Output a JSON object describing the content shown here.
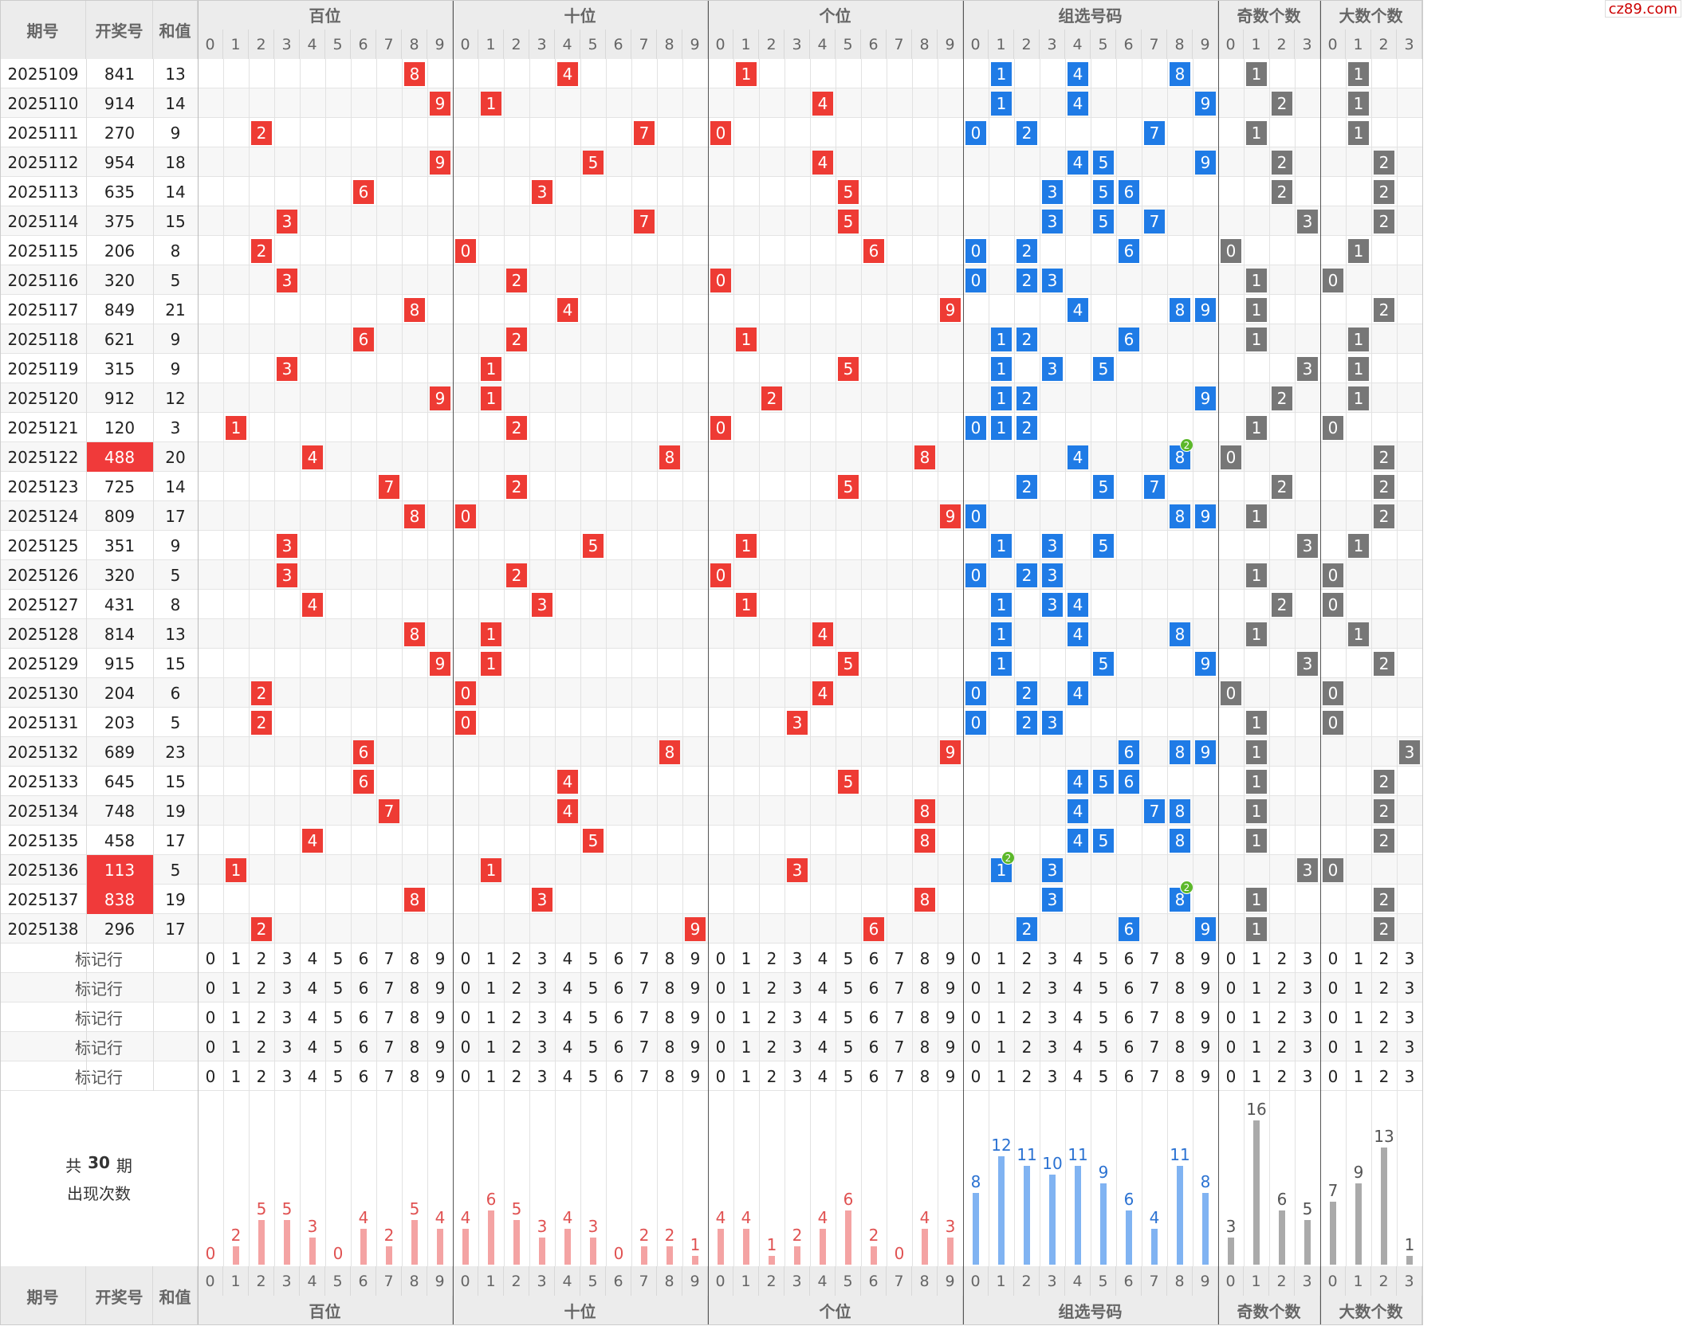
{
  "header": {
    "columns": [
      "期号",
      "开奖号",
      "和值"
    ],
    "groups": [
      "百位",
      "十位",
      "个位",
      "组选号码",
      "奇数个数",
      "大数个数"
    ],
    "digits": [
      0,
      1,
      2,
      3,
      4,
      5,
      6,
      7,
      8,
      9
    ],
    "small_digits": [
      0,
      1,
      2,
      3
    ]
  },
  "rows": [
    {
      "period": 2025109,
      "number": "841",
      "sum": 13
    },
    {
      "period": 2025110,
      "number": "914",
      "sum": 14
    },
    {
      "period": 2025111,
      "number": "270",
      "sum": 9
    },
    {
      "period": 2025112,
      "number": "954",
      "sum": 18
    },
    {
      "period": 2025113,
      "number": "635",
      "sum": 14
    },
    {
      "period": 2025114,
      "number": "375",
      "sum": 15
    },
    {
      "period": 2025115,
      "number": "206",
      "sum": 8
    },
    {
      "period": 2025116,
      "number": "320",
      "sum": 5
    },
    {
      "period": 2025117,
      "number": "849",
      "sum": 21
    },
    {
      "period": 2025118,
      "number": "621",
      "sum": 9
    },
    {
      "period": 2025119,
      "number": "315",
      "sum": 9
    },
    {
      "period": 2025120,
      "number": "912",
      "sum": 12
    },
    {
      "period": 2025121,
      "number": "120",
      "sum": 3
    },
    {
      "period": 2025122,
      "number": "488",
      "sum": 20,
      "repeat": 2
    },
    {
      "period": 2025123,
      "number": "725",
      "sum": 14
    },
    {
      "period": 2025124,
      "number": "809",
      "sum": 17
    },
    {
      "period": 2025125,
      "number": "351",
      "sum": 9
    },
    {
      "period": 2025126,
      "number": "320",
      "sum": 5
    },
    {
      "period": 2025127,
      "number": "431",
      "sum": 8
    },
    {
      "period": 2025128,
      "number": "814",
      "sum": 13
    },
    {
      "period": 2025129,
      "number": "915",
      "sum": 15
    },
    {
      "period": 2025130,
      "number": "204",
      "sum": 6
    },
    {
      "period": 2025131,
      "number": "203",
      "sum": 5
    },
    {
      "period": 2025132,
      "number": "689",
      "sum": 23
    },
    {
      "period": 2025133,
      "number": "645",
      "sum": 15
    },
    {
      "period": 2025134,
      "number": "748",
      "sum": 19
    },
    {
      "period": 2025135,
      "number": "458",
      "sum": 17
    },
    {
      "period": 2025136,
      "number": "113",
      "sum": 5,
      "repeat": 2
    },
    {
      "period": 2025137,
      "number": "838",
      "sum": 19,
      "repeat": 2
    },
    {
      "period": 2025138,
      "number": "296",
      "sum": 17
    }
  ],
  "marker_label": "标记行",
  "stats": {
    "prefix": "共",
    "periods": 30,
    "suffix": "期",
    "line2": "出现次数",
    "counts": [
      [
        0,
        2,
        5,
        5,
        3,
        0,
        4,
        2,
        5,
        4
      ],
      [
        4,
        6,
        5,
        3,
        4,
        3,
        0,
        2,
        2,
        1
      ],
      [
        4,
        4,
        1,
        2,
        4,
        6,
        2,
        0,
        4,
        3
      ],
      [
        8,
        12,
        11,
        10,
        11,
        9,
        6,
        4,
        11,
        8
      ],
      [
        3,
        16,
        6,
        5
      ],
      [
        7,
        9,
        13,
        1
      ]
    ]
  },
  "watermark": "cz89.com"
}
